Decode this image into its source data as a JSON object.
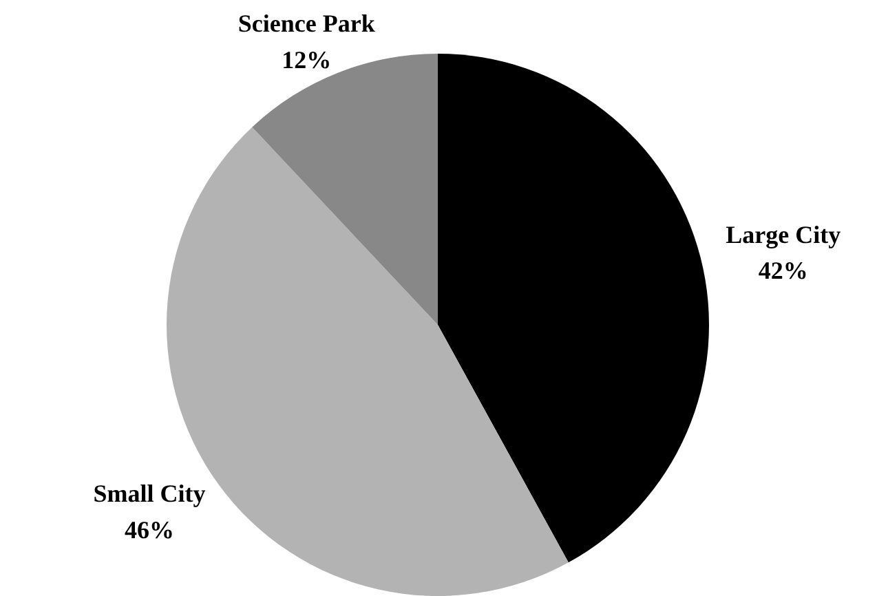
{
  "chart_data": {
    "type": "pie",
    "categories": [
      "Large City",
      "Small City",
      "Science Park"
    ],
    "values": [
      42,
      46,
      12
    ],
    "colors": [
      "#000000",
      "#b3b3b3",
      "#888888"
    ],
    "value_labels": [
      "42%",
      "46%",
      "12%"
    ]
  }
}
